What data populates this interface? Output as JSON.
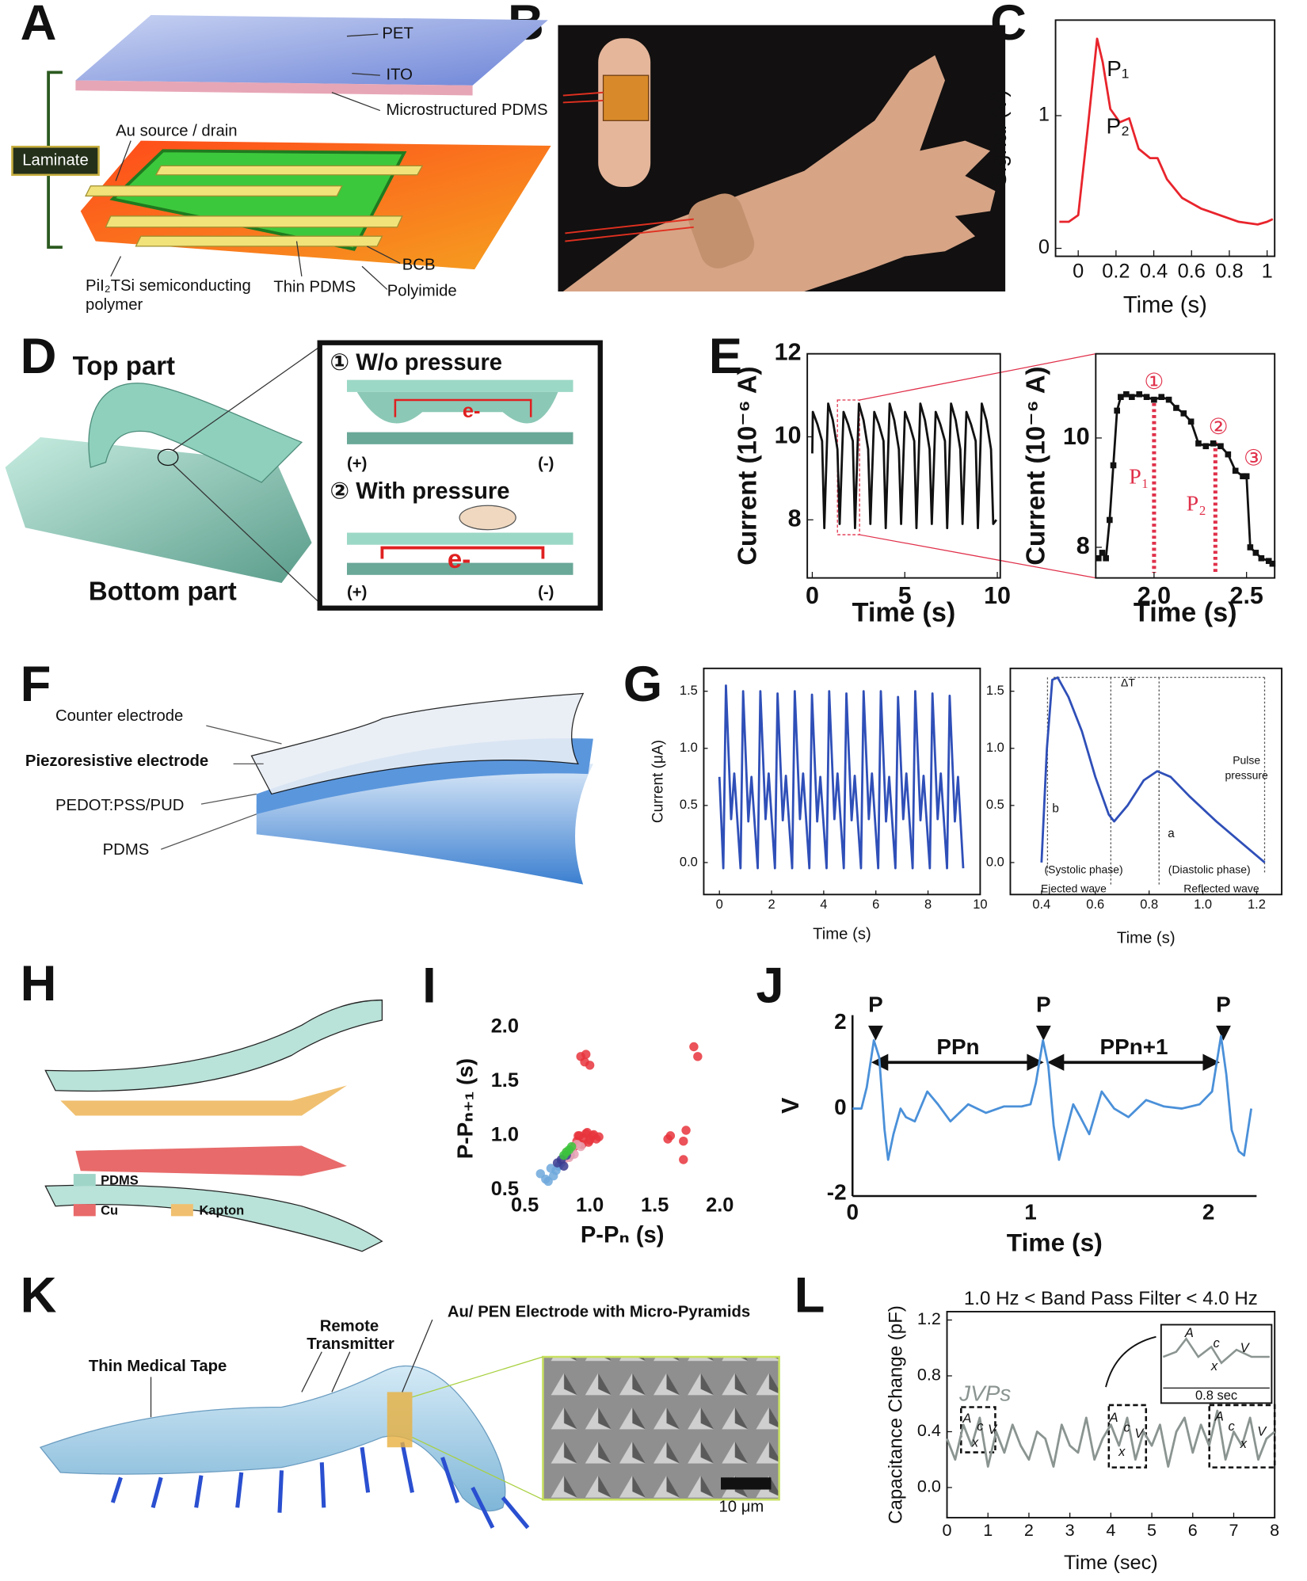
{
  "panel_labels": [
    "A",
    "B",
    "C",
    "D",
    "E",
    "F",
    "G",
    "H",
    "I",
    "J",
    "K",
    "L"
  ],
  "diagrams": {
    "A": [
      "PET",
      "ITO",
      "Microstructured PDMS",
      "Laminate",
      "Au source / drain",
      "PiI₂TSi semiconducting",
      "polymer",
      "Thin PDMS",
      "BCB",
      "Polyimide"
    ],
    "D": [
      "Top part",
      "Bottom part",
      "① W/o pressure",
      "e-",
      "(+)",
      "(-)",
      "② With pressure",
      "e-",
      "(+)",
      "(-)"
    ],
    "F": [
      "Counter electrode",
      "Piezoresistive electrode",
      "PEDOT:PSS/PUD",
      "PDMS"
    ],
    "H": [
      "PDMS",
      "Cu",
      "Kapton"
    ],
    "K": [
      "Thin Medical Tape",
      "Remote",
      "Transmitter",
      "Au/ PEN Electrode with Micro-Pyramids",
      "10 μm"
    ]
  },
  "chart_data": [
    {
      "type": "line",
      "frame": "box",
      "xlabel": "Time (s)",
      "ylabel": "Signal (V)",
      "xlim": [
        -0.12,
        1.04
      ],
      "ylim": [
        -0.06,
        1.72
      ],
      "xticks": [
        0,
        0.2,
        0.4,
        0.6,
        0.8,
        1
      ],
      "yticks": [
        0,
        1
      ],
      "x": [
        -0.1,
        -0.05,
        0,
        0.05,
        0.1,
        0.13,
        0.17,
        0.22,
        0.27,
        0.32,
        0.38,
        0.42,
        0.47,
        0.55,
        0.65,
        0.75,
        0.85,
        0.95,
        1.0,
        1.03
      ],
      "series": [
        {
          "color": "#e8242c",
          "values": [
            0.2,
            0.2,
            0.25,
            0.9,
            1.58,
            1.4,
            1.05,
            0.95,
            0.98,
            0.75,
            0.68,
            0.68,
            0.52,
            0.38,
            0.3,
            0.25,
            0.2,
            0.18,
            0.2,
            0.22
          ]
        }
      ],
      "annotations": [
        "P₁",
        "P₂"
      ]
    },
    {
      "type": "line",
      "frame": "box",
      "xlabel": "Time (s)",
      "ylabel": "Current (10⁻⁶ A)",
      "xlim": [
        -0.27,
        10.16
      ],
      "ylim": [
        6.6,
        12
      ],
      "xticks": [
        0,
        5,
        10
      ],
      "yticks": [
        8,
        10,
        12
      ],
      "x": [
        0,
        0.03,
        0.28,
        0.53,
        0.65,
        0.86,
        1.11,
        1.36,
        1.48,
        1.69,
        1.94,
        2.19,
        2.31,
        2.52,
        2.77,
        3.02,
        3.14,
        3.35,
        3.6,
        3.85,
        3.97,
        4.18,
        4.43,
        4.68,
        4.8,
        5.01,
        5.26,
        5.51,
        5.63,
        5.84,
        6.09,
        6.34,
        6.46,
        6.67,
        6.92,
        7.17,
        7.29,
        7.5,
        7.75,
        8.0,
        8.12,
        8.33,
        8.58,
        8.83,
        8.95,
        9.16,
        9.41,
        9.66,
        9.78,
        9.95
      ],
      "series": [
        {
          "color": "#111111",
          "values": [
            9.6,
            10.6,
            10.3,
            9.9,
            7.8,
            10.8,
            10.4,
            9.7,
            7.9,
            10.6,
            10.3,
            9.9,
            7.8,
            10.8,
            10.4,
            9.7,
            7.9,
            10.6,
            10.3,
            9.9,
            7.8,
            10.8,
            10.4,
            9.7,
            7.9,
            10.6,
            10.3,
            9.9,
            7.8,
            10.8,
            10.4,
            9.7,
            7.9,
            10.6,
            10.3,
            9.9,
            7.8,
            10.8,
            10.4,
            9.7,
            7.9,
            10.6,
            10.3,
            9.9,
            7.8,
            10.8,
            10.4,
            9.7,
            7.9,
            8.0
          ]
        }
      ]
    },
    {
      "type": "line",
      "frame": "box",
      "xlabel": "Time (s)",
      "ylabel": "Current (10⁻⁶ A)",
      "xlim": [
        1.685,
        2.652
      ],
      "ylim": [
        7.44,
        11.54
      ],
      "xticks": [
        {
          "value": 2,
          "label": "2.0"
        },
        2.5
      ],
      "yticks": [
        8,
        10
      ],
      "x": [
        1.7,
        1.72,
        1.74,
        1.76,
        1.78,
        1.8,
        1.82,
        1.85,
        1.88,
        1.92,
        1.96,
        2.0,
        2.04,
        2.08,
        2.12,
        2.16,
        2.2,
        2.24,
        2.28,
        2.32,
        2.36,
        2.4,
        2.44,
        2.48,
        2.5,
        2.52,
        2.55,
        2.58,
        2.62,
        2.64
      ],
      "series": [
        {
          "color": "#111111",
          "marker": "square",
          "values": [
            7.8,
            7.9,
            7.8,
            8.5,
            9.5,
            10.5,
            10.75,
            10.8,
            10.75,
            10.8,
            10.75,
            10.7,
            10.75,
            10.7,
            10.55,
            10.45,
            10.3,
            9.9,
            9.85,
            9.9,
            9.85,
            9.7,
            9.4,
            9.3,
            9.3,
            8.0,
            7.9,
            7.8,
            7.75,
            7.7
          ]
        }
      ],
      "annotations": [
        "①",
        "P₁",
        "②",
        "P₂",
        "③"
      ]
    },
    {
      "type": "line",
      "frame": "box",
      "xlabel": "Time (s)",
      "ylabel": "Current (μA)",
      "xlim": [
        -0.6,
        10
      ],
      "ylim": [
        -0.28,
        1.7
      ],
      "xticks": [
        0,
        2,
        4,
        6,
        8,
        10
      ],
      "yticks": [
        {
          "value": 0,
          "label": "0.0"
        },
        0.5,
        {
          "value": 1,
          "label": "1.0"
        },
        1.5
      ],
      "x": [
        0,
        0.15,
        0.25,
        0.45,
        0.57,
        0.81,
        0.91,
        1.11,
        1.23,
        1.47,
        1.57,
        1.77,
        1.89,
        2.13,
        2.23,
        2.43,
        2.55,
        2.79,
        2.89,
        3.09,
        3.21,
        3.45,
        3.55,
        3.75,
        3.87,
        4.11,
        4.21,
        4.41,
        4.53,
        4.77,
        4.87,
        5.07,
        5.19,
        5.43,
        5.53,
        5.73,
        5.85,
        6.09,
        6.19,
        6.39,
        6.51,
        6.75,
        6.85,
        7.05,
        7.17,
        7.41,
        7.51,
        7.71,
        7.83,
        8.07,
        8.17,
        8.37,
        8.49,
        8.73,
        8.83,
        9.03,
        9.15,
        9.35
      ],
      "series": [
        {
          "color": "#2f4fb8",
          "values": [
            0.75,
            -0.05,
            1.55,
            0.38,
            0.78,
            -0.05,
            1.5,
            0.36,
            0.75,
            -0.05,
            1.5,
            0.38,
            0.78,
            -0.05,
            1.48,
            0.37,
            0.76,
            -0.05,
            1.5,
            0.38,
            0.78,
            -0.05,
            1.47,
            0.36,
            0.75,
            -0.05,
            1.5,
            0.38,
            0.78,
            -0.05,
            1.48,
            0.37,
            0.76,
            -0.05,
            1.5,
            0.38,
            0.78,
            -0.05,
            1.5,
            0.36,
            0.75,
            -0.05,
            1.45,
            0.38,
            0.78,
            -0.05,
            1.5,
            0.37,
            0.76,
            -0.05,
            1.48,
            0.38,
            0.78,
            -0.05,
            1.46,
            0.36,
            0.75,
            -0.05
          ]
        }
      ]
    },
    {
      "type": "line",
      "frame": "box",
      "xlabel": "Time (s)",
      "xlim": [
        0.284,
        1.293
      ],
      "ylim": [
        -0.28,
        1.7
      ],
      "xticks": [
        0.4,
        0.6,
        0.8,
        {
          "value": 1,
          "label": "1.0"
        },
        1.2
      ],
      "yticks": [
        {
          "value": 0,
          "label": "0.0"
        },
        0.5,
        {
          "value": 1,
          "label": "1.0"
        },
        1.5
      ],
      "x": [
        0.4,
        0.42,
        0.44,
        0.46,
        0.5,
        0.55,
        0.6,
        0.65,
        0.67,
        0.72,
        0.78,
        0.83,
        0.88,
        0.95,
        1.05,
        1.15,
        1.23
      ],
      "series": [
        {
          "color": "#2f4fb8",
          "values": [
            0.0,
            1.0,
            1.6,
            1.62,
            1.45,
            1.15,
            0.75,
            0.42,
            0.36,
            0.5,
            0.72,
            0.8,
            0.75,
            0.58,
            0.36,
            0.16,
            0.0
          ]
        }
      ],
      "annotations": [
        "ΔT",
        "Pulse",
        "pressure",
        "b",
        "a",
        "(Systolic phase)",
        "(Diastolic phase)",
        "Ejected wave",
        "Reflected wave"
      ]
    },
    {
      "type": "scatter",
      "frame": "none",
      "xlabel": "P-Pₙ (s)",
      "ylabel": "P-Pₙ₊₁ (s)",
      "xlim": [
        0.5,
        2.0
      ],
      "ylim": [
        0.5,
        2.0
      ],
      "xticks": [
        0.5,
        {
          "value": 1,
          "label": "1.0"
        },
        1.5,
        {
          "value": 2,
          "label": "2.0"
        }
      ],
      "yticks": [
        0.5,
        {
          "value": 1,
          "label": "1.0"
        },
        1.5,
        {
          "value": 2,
          "label": "2.0"
        }
      ],
      "series": [
        {
          "color": "#e8343c",
          "x": [
            0.93,
            0.97,
            0.96,
            1.0,
            1.8,
            1.83,
            1.62,
            1.72,
            1.74,
            1.72,
            1.6,
            0.9,
            0.92,
            0.95,
            0.97,
            1.0,
            1.02,
            1.05,
            0.94,
            0.98,
            1.03,
            0.88,
            0.99,
            1.07,
            0.91
          ],
          "values": [
            1.73,
            1.75,
            1.68,
            1.65,
            1.82,
            1.73,
            1.0,
            0.95,
            1.05,
            0.78,
            0.97,
            0.95,
            1.0,
            0.98,
            1.02,
            0.96,
            1.0,
            0.97,
            0.92,
            1.03,
            1.01,
            0.9,
            0.94,
            0.99,
            1.0
          ]
        },
        {
          "color": "#6fa8dc",
          "x": [
            0.62,
            0.66,
            0.7,
            0.74,
            0.78,
            0.8,
            0.68,
            0.72,
            0.85,
            0.76
          ],
          "values": [
            0.65,
            0.6,
            0.7,
            0.68,
            0.75,
            0.8,
            0.58,
            0.63,
            0.82,
            0.72
          ]
        },
        {
          "color": "#e8a0b0",
          "x": [
            0.82,
            0.86,
            0.9,
            0.84,
            0.88,
            0.93,
            0.8
          ],
          "values": [
            0.85,
            0.88,
            0.92,
            0.8,
            0.83,
            0.9,
            0.78
          ]
        },
        {
          "color": "#3b3b8f",
          "x": [
            0.75,
            0.78,
            0.82,
            0.8
          ],
          "values": [
            0.75,
            0.78,
            0.82,
            0.72
          ]
        },
        {
          "color": "#3cc43c",
          "x": [
            0.8,
            0.82,
            0.84,
            0.86
          ],
          "values": [
            0.82,
            0.85,
            0.87,
            0.9
          ]
        }
      ]
    },
    {
      "type": "line",
      "frame": "axes",
      "xlabel": "Time (s)",
      "ylabel": "V",
      "xlim": [
        0,
        2.27
      ],
      "ylim": [
        -2.05,
        2.19
      ],
      "xticks": [
        0,
        1,
        2
      ],
      "yticks": [
        -2,
        0,
        2
      ],
      "x": [
        0,
        0.05,
        0.08,
        0.12,
        0.15,
        0.18,
        0.2,
        0.23,
        0.27,
        0.3,
        0.35,
        0.42,
        0.48,
        0.55,
        0.65,
        0.75,
        0.85,
        0.95,
        1.0,
        1.03,
        1.07,
        1.1,
        1.13,
        1.16,
        1.19,
        1.24,
        1.28,
        1.33,
        1.4,
        1.47,
        1.55,
        1.65,
        1.75,
        1.85,
        1.95,
        2.02,
        2.07,
        2.1,
        2.13,
        2.17,
        2.2,
        2.24
      ],
      "series": [
        {
          "color": "#4a90d9",
          "values": [
            0,
            0,
            0.5,
            1.6,
            1.2,
            -0.5,
            -1.2,
            -0.6,
            0,
            -0.2,
            -0.3,
            0.4,
            0.1,
            -0.3,
            0.1,
            -0.1,
            0.05,
            0.05,
            0.1,
            0.6,
            1.6,
            1.0,
            -0.4,
            -1.2,
            -0.7,
            0.1,
            -0.2,
            -0.6,
            0.4,
            0,
            -0.2,
            0.2,
            0.05,
            0,
            0.1,
            0.4,
            1.7,
            0.8,
            -0.5,
            -1.0,
            -1.1,
            0
          ]
        }
      ],
      "annotations": [
        "P",
        "P",
        "P",
        "PPn",
        "PPn+1"
      ]
    },
    {
      "type": "line",
      "frame": "box",
      "title": "1.0 Hz  < Band Pass Filter < 4.0 Hz",
      "xlabel": "Time (sec)",
      "ylabel": "Capacitance Change (pF)",
      "xlim": [
        0,
        8
      ],
      "ylim": [
        -0.216,
        1.26
      ],
      "xticks": [
        0,
        1,
        2,
        3,
        4,
        5,
        6,
        7,
        8
      ],
      "yticks": [
        {
          "value": 0,
          "label": "0.0"
        },
        0.4,
        0.8,
        1.2
      ],
      "x": [
        0,
        0.2,
        0.4,
        0.6,
        0.8,
        1.0,
        1.2,
        1.4,
        1.6,
        1.8,
        2.0,
        2.2,
        2.4,
        2.6,
        2.8,
        3.0,
        3.2,
        3.4,
        3.6,
        3.8,
        4.0,
        4.2,
        4.4,
        4.6,
        4.8,
        5.0,
        5.2,
        5.4,
        5.6,
        5.8,
        6.0,
        6.2,
        6.4,
        6.6,
        6.8,
        7.0,
        7.2,
        7.4,
        7.6,
        7.8,
        8.0
      ],
      "series": [
        {
          "color": "#8a9490",
          "values": [
            0.35,
            0.2,
            0.45,
            0.3,
            0.5,
            0.15,
            0.4,
            0.25,
            0.45,
            0.3,
            0.2,
            0.4,
            0.35,
            0.15,
            0.45,
            0.3,
            0.25,
            0.5,
            0.2,
            0.35,
            0.45,
            0.3,
            0.5,
            0.2,
            0.4,
            0.3,
            0.45,
            0.15,
            0.4,
            0.5,
            0.25,
            0.45,
            0.3,
            0.55,
            0.2,
            0.4,
            0.3,
            0.5,
            0.2,
            0.35,
            0.4
          ]
        }
      ],
      "annotations": [
        "JVPs",
        "A",
        "c",
        "V",
        "x",
        "A",
        "c",
        "V",
        "x",
        "A",
        "c",
        "V",
        "x",
        "A",
        "c",
        "V",
        "x",
        "0.8 sec"
      ]
    }
  ]
}
